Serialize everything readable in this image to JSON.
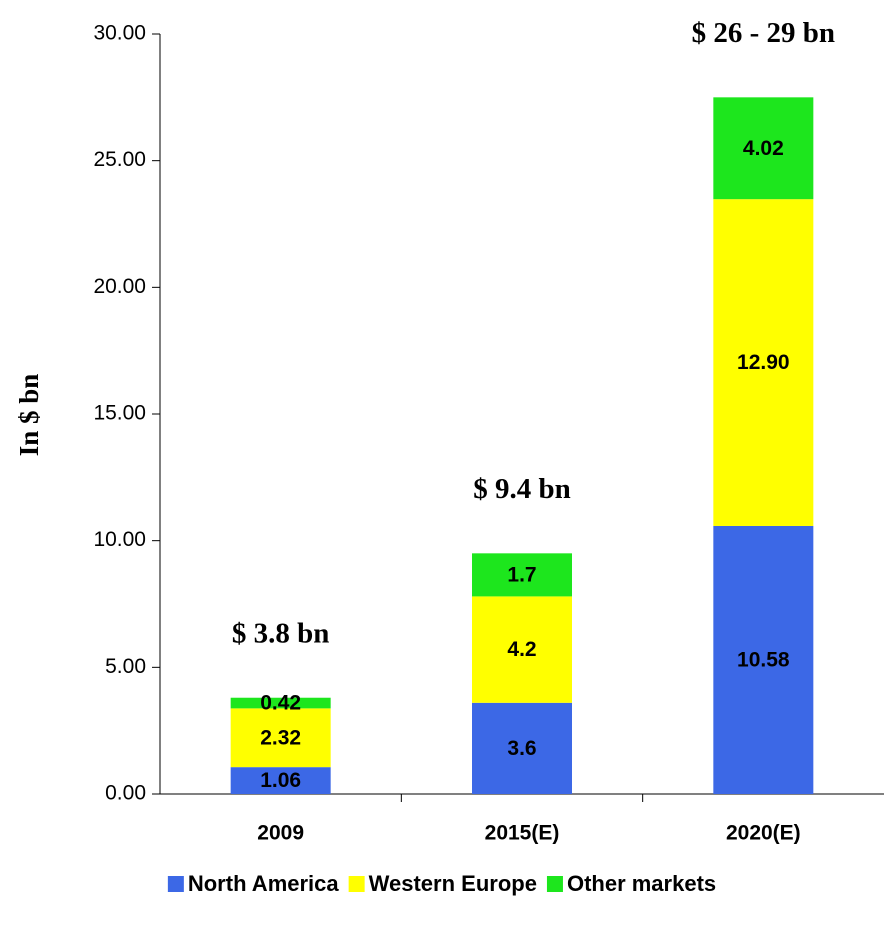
{
  "chart_data": {
    "type": "stacked_bar",
    "y_label": "In $ bn",
    "categories": [
      "2009",
      "2015(E)",
      "2020(E)"
    ],
    "annotations": [
      "$ 3.8 bn",
      "$ 9.4 bn",
      "$ 26 - 29 bn"
    ],
    "series": [
      {
        "name": "North America",
        "color": "#3c68e6",
        "values": [
          1.06,
          3.6,
          10.58
        ]
      },
      {
        "name": "Western Europe",
        "color": "#ffff00",
        "values": [
          2.32,
          4.2,
          12.9
        ],
        "value_labels": [
          "2.32",
          "4.2",
          "12.90"
        ]
      },
      {
        "name": "Other markets",
        "color": "#1de61d",
        "values": [
          0.42,
          1.7,
          4.02
        ]
      }
    ],
    "ylim": [
      0,
      30
    ],
    "yticks": [
      {
        "value": 0,
        "label": "0.00"
      },
      {
        "value": 5,
        "label": "5.00"
      },
      {
        "value": 10,
        "label": "10.00"
      },
      {
        "value": 15,
        "label": "15.00"
      },
      {
        "value": 20,
        "label": "20.00"
      },
      {
        "value": 25,
        "label": "25.00"
      },
      {
        "value": 30,
        "label": "30.00"
      }
    ],
    "legend": "bottom"
  }
}
